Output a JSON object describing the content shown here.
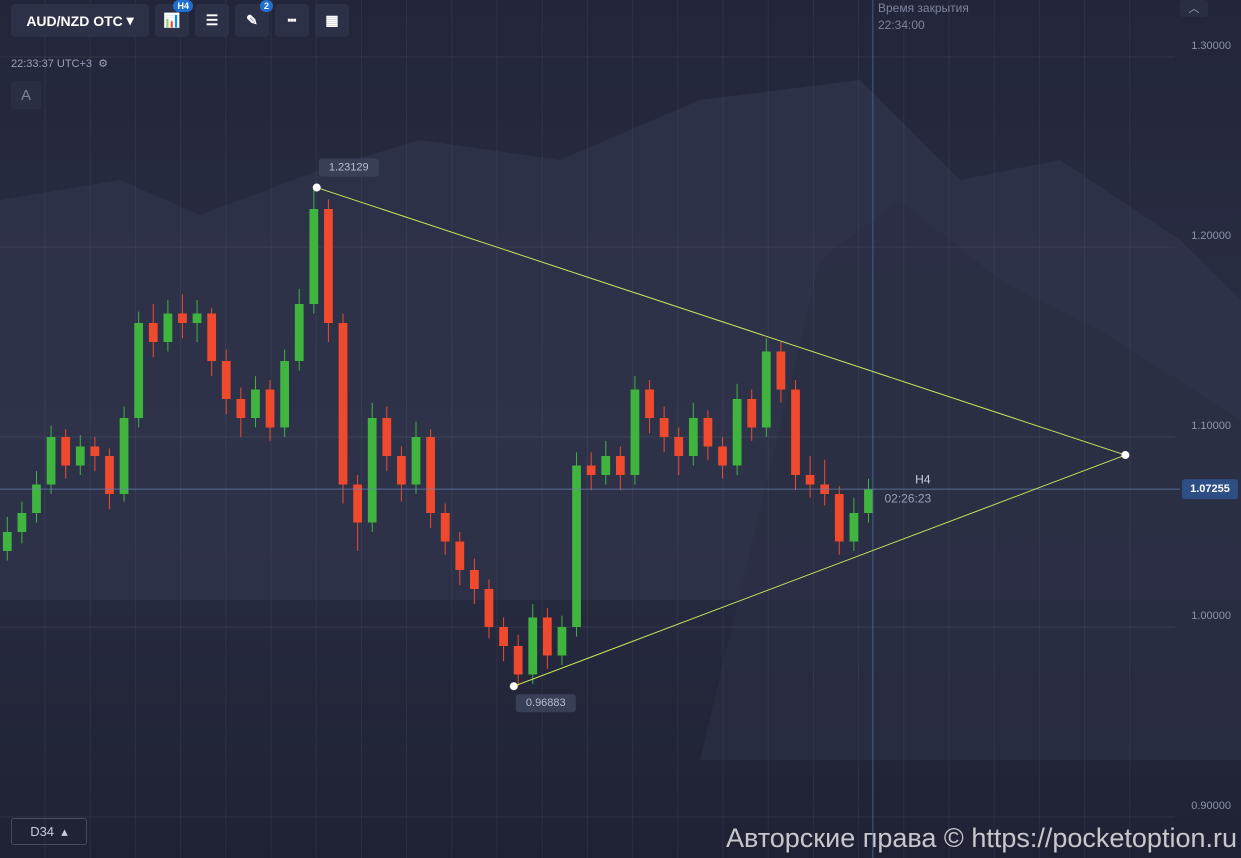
{
  "toolbar": {
    "symbol": "AUD/NZD OTC",
    "timeframe_badge": "H4",
    "drawings_badge": "2",
    "clock": "22:33:37 UTC+3",
    "text_button": "A",
    "indicator": "D34"
  },
  "watermark": "Авторские права © https://pocketoption.ru",
  "chart_data": {
    "type": "candlestick",
    "up_color": "#3fb43f",
    "down_color": "#ef4a2e",
    "xlim": [
      -0.5,
      80
    ],
    "ylim": [
      0.88,
      1.33
    ],
    "yticks": [
      {
        "value": 0.9,
        "label": "0.90000"
      },
      {
        "value": 1.0,
        "label": "1.00000"
      },
      {
        "value": 1.1,
        "label": "1.10000"
      },
      {
        "value": 1.2,
        "label": "1.20000"
      },
      {
        "value": 1.3,
        "label": "1.30000"
      }
    ],
    "grid": true,
    "current_price": 1.07255,
    "timeframe": "H4",
    "timer": "02:26:23",
    "close_time_title": "Время закрытия",
    "close_time": "22:34:00",
    "candles": [
      [
        1.04,
        1.058,
        1.035,
        1.05
      ],
      [
        1.05,
        1.066,
        1.044,
        1.06
      ],
      [
        1.06,
        1.082,
        1.055,
        1.075
      ],
      [
        1.075,
        1.106,
        1.07,
        1.1
      ],
      [
        1.1,
        1.104,
        1.078,
        1.085
      ],
      [
        1.085,
        1.101,
        1.08,
        1.095
      ],
      [
        1.095,
        1.1,
        1.082,
        1.09
      ],
      [
        1.09,
        1.094,
        1.062,
        1.07
      ],
      [
        1.07,
        1.116,
        1.066,
        1.11
      ],
      [
        1.11,
        1.166,
        1.105,
        1.16
      ],
      [
        1.16,
        1.17,
        1.142,
        1.15
      ],
      [
        1.15,
        1.172,
        1.145,
        1.165
      ],
      [
        1.165,
        1.175,
        1.152,
        1.16
      ],
      [
        1.16,
        1.172,
        1.15,
        1.165
      ],
      [
        1.165,
        1.168,
        1.132,
        1.14
      ],
      [
        1.14,
        1.146,
        1.112,
        1.12
      ],
      [
        1.12,
        1.126,
        1.1,
        1.11
      ],
      [
        1.11,
        1.132,
        1.105,
        1.125
      ],
      [
        1.125,
        1.13,
        1.098,
        1.105
      ],
      [
        1.105,
        1.146,
        1.1,
        1.14
      ],
      [
        1.14,
        1.178,
        1.135,
        1.17
      ],
      [
        1.17,
        1.23129,
        1.165,
        1.22
      ],
      [
        1.22,
        1.225,
        1.15,
        1.16
      ],
      [
        1.16,
        1.165,
        1.065,
        1.075
      ],
      [
        1.075,
        1.08,
        1.04,
        1.055
      ],
      [
        1.055,
        1.118,
        1.05,
        1.11
      ],
      [
        1.11,
        1.116,
        1.082,
        1.09
      ],
      [
        1.09,
        1.095,
        1.066,
        1.075
      ],
      [
        1.075,
        1.108,
        1.07,
        1.1
      ],
      [
        1.1,
        1.104,
        1.052,
        1.06
      ],
      [
        1.06,
        1.065,
        1.038,
        1.045
      ],
      [
        1.045,
        1.05,
        1.022,
        1.03
      ],
      [
        1.03,
        1.036,
        1.012,
        1.02
      ],
      [
        1.02,
        1.025,
        0.994,
        1.0
      ],
      [
        1.0,
        1.005,
        0.982,
        0.99
      ],
      [
        0.99,
        0.996,
        0.96883,
        0.975
      ],
      [
        0.975,
        1.012,
        0.97,
        1.005
      ],
      [
        1.005,
        1.01,
        0.978,
        0.985
      ],
      [
        0.985,
        1.006,
        0.98,
        1.0
      ],
      [
        1.0,
        1.092,
        0.995,
        1.085
      ],
      [
        1.085,
        1.092,
        1.072,
        1.08
      ],
      [
        1.08,
        1.098,
        1.075,
        1.09
      ],
      [
        1.09,
        1.095,
        1.072,
        1.08
      ],
      [
        1.08,
        1.132,
        1.075,
        1.125
      ],
      [
        1.125,
        1.13,
        1.102,
        1.11
      ],
      [
        1.11,
        1.116,
        1.092,
        1.1
      ],
      [
        1.1,
        1.105,
        1.08,
        1.09
      ],
      [
        1.09,
        1.118,
        1.085,
        1.11
      ],
      [
        1.11,
        1.114,
        1.088,
        1.095
      ],
      [
        1.095,
        1.1,
        1.078,
        1.085
      ],
      [
        1.085,
        1.128,
        1.08,
        1.12
      ],
      [
        1.12,
        1.125,
        1.098,
        1.105
      ],
      [
        1.105,
        1.152,
        1.1,
        1.145
      ],
      [
        1.145,
        1.15,
        1.118,
        1.125
      ],
      [
        1.125,
        1.13,
        1.072,
        1.08
      ],
      [
        1.08,
        1.09,
        1.068,
        1.075
      ],
      [
        1.075,
        1.088,
        1.064,
        1.07
      ],
      [
        1.07,
        1.074,
        1.038,
        1.045
      ],
      [
        1.045,
        1.068,
        1.04,
        1.06
      ],
      [
        1.06,
        1.078,
        1.055,
        1.0725
      ]
    ],
    "pattern": {
      "color": "#c6e55a",
      "points": [
        {
          "x": 21.2,
          "y": 1.23129
        },
        {
          "x": 76.6,
          "y": 1.0905
        },
        {
          "x": 34.7,
          "y": 0.96883
        }
      ],
      "value_labels": [
        "1.23129",
        null,
        "0.96883"
      ]
    }
  }
}
